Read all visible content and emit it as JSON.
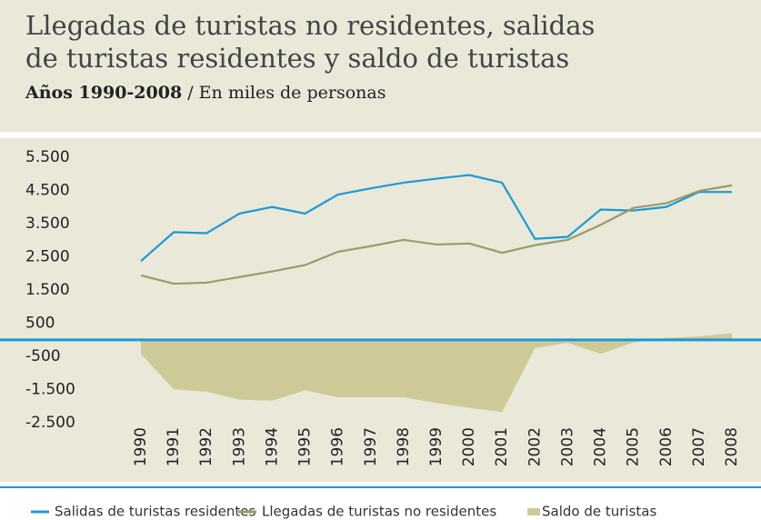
{
  "chart_data": {
    "type": "line",
    "title": [
      "Llegadas de turistas no residentes, salidas",
      "de turistas residentes y saldo de turistas"
    ],
    "subtitle": [
      "Años 1990-2008",
      " / En miles de personas"
    ],
    "categories": [
      "1990",
      "1991",
      "1992",
      "1993",
      "1994",
      "1995",
      "1996",
      "1997",
      "1998",
      "1999",
      "2000",
      "2001",
      "2002",
      "2003",
      "2004",
      "2005",
      "2006",
      "2007",
      "2008"
    ],
    "series": [
      {
        "name": "Salidas de turistas residentes",
        "color": "#1b9ad6",
        "kind": "line",
        "values": [
          2370,
          3240,
          3210,
          3800,
          4000,
          3800,
          4370,
          4560,
          4730,
          4850,
          4960,
          4730,
          3040,
          3100,
          3920,
          3890,
          4000,
          4450,
          4450
        ]
      },
      {
        "name": "Llegadas de turistas no residentes",
        "color": "#9b9a6a",
        "kind": "line",
        "values": [
          1940,
          1690,
          1720,
          1890,
          2060,
          2250,
          2650,
          2820,
          3010,
          2870,
          2900,
          2620,
          2850,
          3010,
          3460,
          3970,
          4110,
          4480,
          4650
        ]
      },
      {
        "name": "Saldo de turistas",
        "color": "#cdca98",
        "kind": "area",
        "values": [
          -430,
          -1490,
          -1560,
          -1800,
          -1830,
          -1520,
          -1730,
          -1730,
          -1730,
          -1900,
          -2050,
          -2170,
          -250,
          -90,
          -420,
          -80,
          60,
          100,
          200
        ]
      }
    ],
    "ylim": [
      -2850,
      5850
    ],
    "yticks": [
      {
        "value": 5500,
        "label": "5.500"
      },
      {
        "value": 4500,
        "label": "4.500"
      },
      {
        "value": 3500,
        "label": "3.500"
      },
      {
        "value": 2500,
        "label": "2.500"
      },
      {
        "value": 1500,
        "label": "1.500"
      },
      500,
      -500,
      {
        "value": -1500,
        "label": "-1.500"
      },
      {
        "value": -2500,
        "label": "-2.500"
      }
    ],
    "grid": false
  }
}
